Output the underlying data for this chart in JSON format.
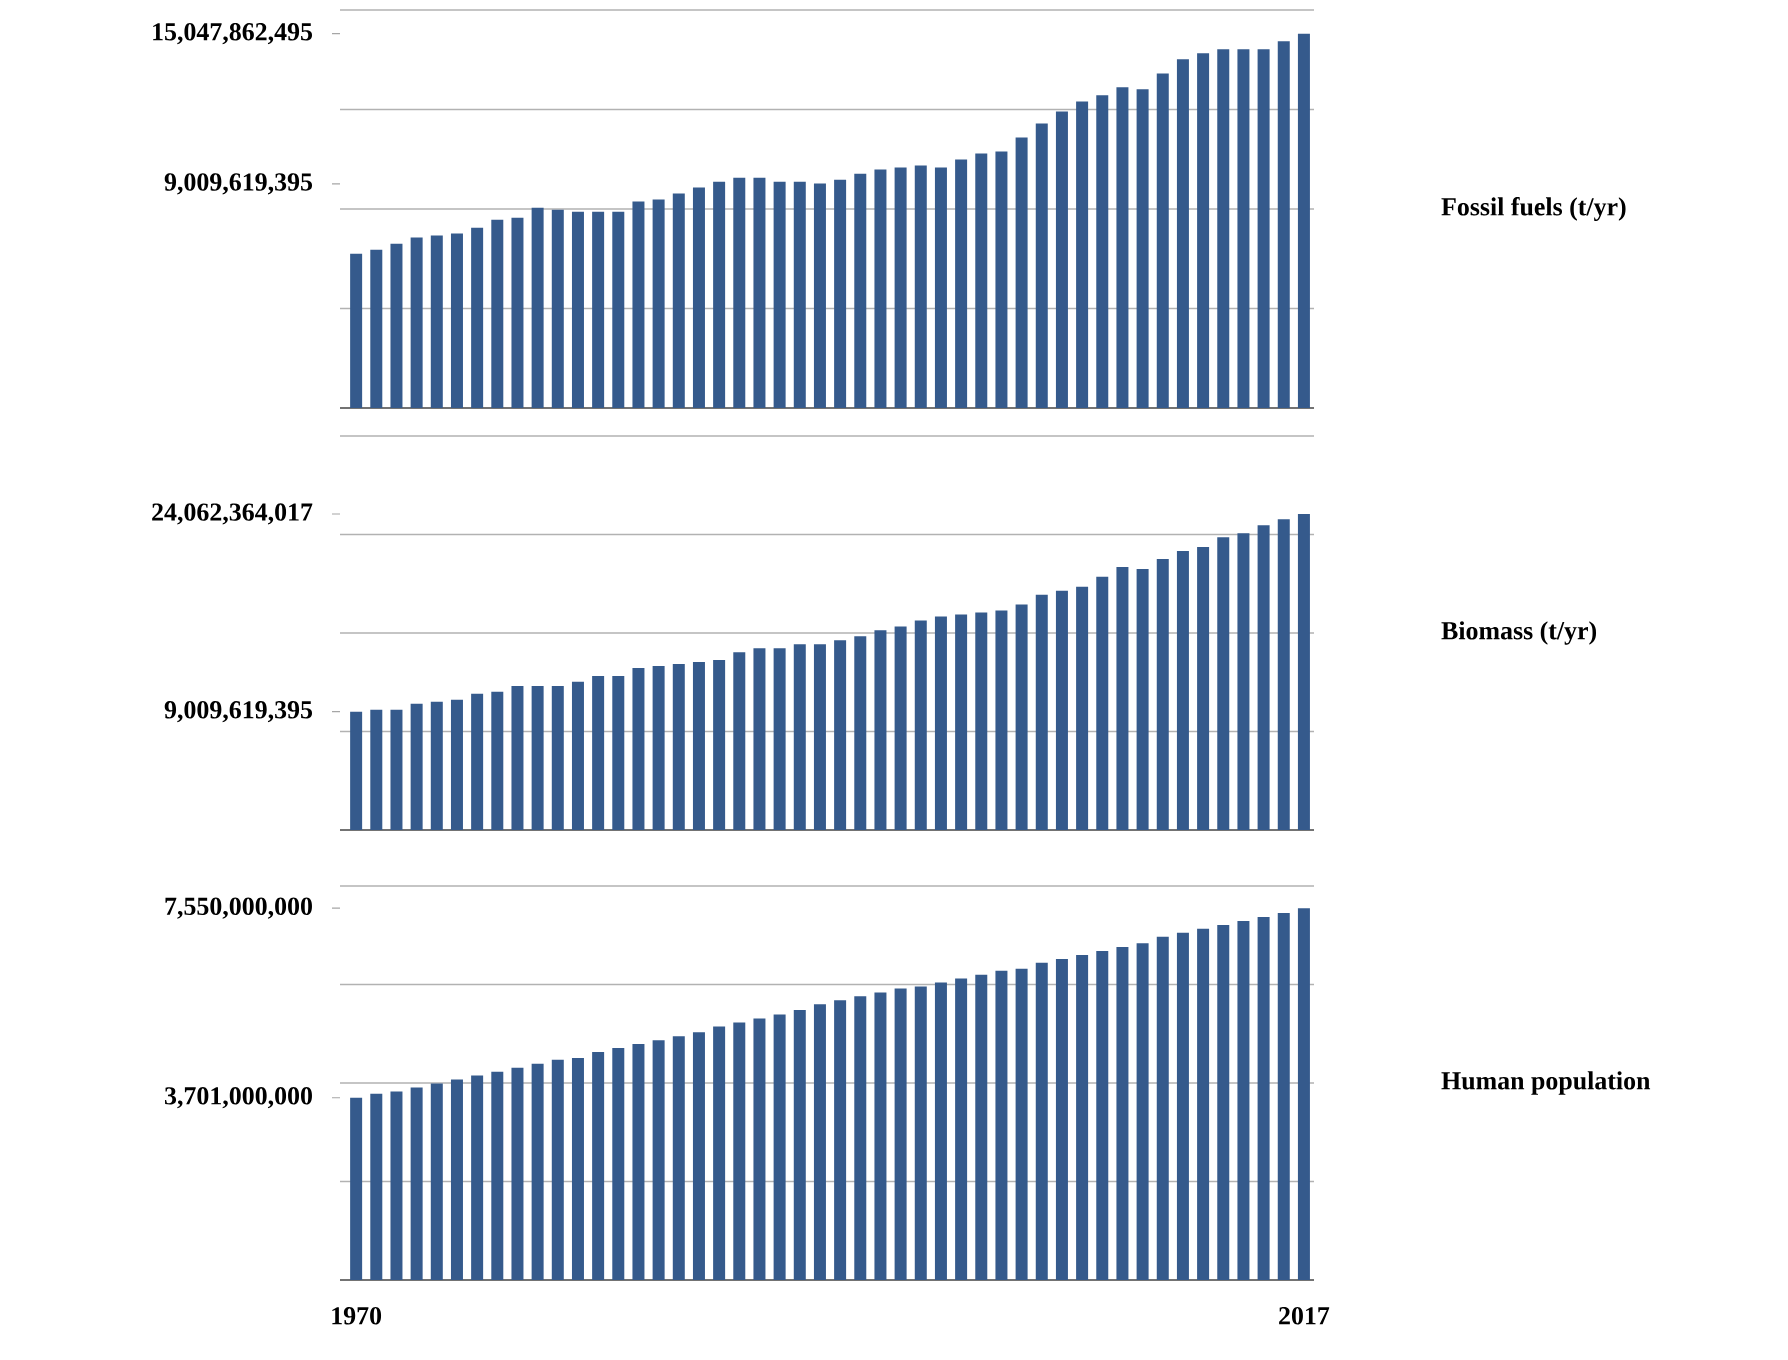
{
  "chart_data": [
    {
      "type": "bar",
      "ylabel": "Fossil fuels (t/yr)",
      "color": "#355a8c",
      "grid": "y",
      "tick_labels": "y",
      "categories": [
        "1970",
        null,
        null,
        null,
        null,
        null,
        null,
        null,
        null,
        null,
        null,
        null,
        null,
        null,
        null,
        null,
        null,
        null,
        null,
        null,
        null,
        null,
        null,
        null,
        null,
        null,
        null,
        null,
        null,
        null,
        null,
        null,
        null,
        null,
        null,
        null,
        null,
        null,
        null,
        null,
        null,
        null,
        null,
        null,
        null,
        null,
        null,
        "2017"
      ],
      "values": [
        6200000000.0,
        6360000000.0,
        6600000000.0,
        6850000000.0,
        6930000000.0,
        7010000000.0,
        7250000000.0,
        7570000000.0,
        7650000000.0,
        8050000000.0,
        7970000000.0,
        7890000000.0,
        7890000000.0,
        7890000000.0,
        8300000000.0,
        8380000000.0,
        8620000000.0,
        8860000000.0,
        9100000000.0,
        9260000000.0,
        9260000000.0,
        9100000000.0,
        9100000000.0,
        9020000000.0,
        9180000000.0,
        9420000000.0,
        9590000000.0,
        9670000000.0,
        9750000000.0,
        9670000000.0,
        9990000000.0,
        10230000000.0,
        10310000000.0,
        10870000000.0,
        11440000000.0,
        11920000000.0,
        12320000000.0,
        12570000000.0,
        12890000000.0,
        12810000000.0,
        13450000000.0,
        14020000000.0,
        14260000000.0,
        14420000000.0,
        14420000000.0,
        14420000000.0,
        14740000000.0,
        15047862495
      ],
      "ylim": [
        0,
        16000000000
      ],
      "yticks": [
        {
          "value": 9009619395,
          "label": "9,009,619,395"
        },
        {
          "value": 15047862495,
          "label": "15,047,862,495"
        },
        {
          "value": 4000000000,
          "label": null
        },
        {
          "value": 8000000000,
          "label": null
        },
        {
          "value": 12000000000,
          "label": null
        },
        {
          "value": 16000000000,
          "label": null
        }
      ]
    },
    {
      "type": "bar",
      "ylabel": "Biomass (t/yr)",
      "color": "#355a8c",
      "grid": "y",
      "tick_labels": "y",
      "categories": [
        "1970",
        null,
        null,
        null,
        null,
        null,
        null,
        null,
        null,
        null,
        null,
        null,
        null,
        null,
        null,
        null,
        null,
        null,
        null,
        null,
        null,
        null,
        null,
        null,
        null,
        null,
        null,
        null,
        null,
        null,
        null,
        null,
        null,
        null,
        null,
        null,
        null,
        null,
        null,
        null,
        null,
        null,
        null,
        null,
        null,
        null,
        null,
        "2017"
      ],
      "values": [
        9009619395,
        9160000000.0,
        9160000000.0,
        9610000000.0,
        9770000000.0,
        9920000000.0,
        10370000000.0,
        10520000000.0,
        10970000000.0,
        10970000000.0,
        10970000000.0,
        11280000000.0,
        11730000000.0,
        11730000000.0,
        12330000000.0,
        12480000000.0,
        12630000000.0,
        12790000000.0,
        12940000000.0,
        13540000000.0,
        13840000000.0,
        13840000000.0,
        14140000000.0,
        14140000000.0,
        14450000000.0,
        14750000000.0,
        15200000000.0,
        15500000000.0,
        15960000000.0,
        16260000000.0,
        16410000000.0,
        16560000000.0,
        16710000000.0,
        17170000000.0,
        17920000000.0,
        18220000000.0,
        18520000000.0,
        19280000000.0,
        20030000000.0,
        19880000000.0,
        20640000000.0,
        21240000000.0,
        21540000000.0,
        22300000000.0,
        22600000000.0,
        23210000000.0,
        23660000000.0,
        24062364017
      ],
      "ylim": [
        0,
        30000000000
      ],
      "yticks": [
        {
          "value": 9009619395,
          "label": "9,009,619,395"
        },
        {
          "value": 24062364017,
          "label": "24,062,364,017"
        },
        {
          "value": 7500000000,
          "label": null
        },
        {
          "value": 15000000000,
          "label": null
        },
        {
          "value": 22500000000,
          "label": null
        },
        {
          "value": 30000000000,
          "label": null
        }
      ]
    },
    {
      "type": "bar",
      "ylabel": "Human population",
      "color": "#355a8c",
      "grid": "y",
      "categories": [
        "1970",
        null,
        null,
        null,
        null,
        null,
        null,
        null,
        null,
        null,
        null,
        null,
        null,
        null,
        null,
        null,
        null,
        null,
        null,
        null,
        null,
        null,
        null,
        null,
        null,
        null,
        null,
        null,
        null,
        null,
        null,
        null,
        null,
        null,
        null,
        null,
        null,
        null,
        null,
        null,
        null,
        null,
        null,
        null,
        null,
        null,
        null,
        "2017"
      ],
      "values": [
        3701000000,
        3780000000.0,
        3830000000.0,
        3910000000.0,
        3990000000.0,
        4070000000.0,
        4150000000.0,
        4230000000.0,
        4310000000.0,
        4390000000.0,
        4470000000.0,
        4510000000.0,
        4630000000.0,
        4710000000.0,
        4790000000.0,
        4870000000.0,
        4950000000.0,
        5030000000.0,
        5150000000.0,
        5230000000.0,
        5310000000.0,
        5390000000.0,
        5480000000.0,
        5600000000.0,
        5680000000.0,
        5760000000.0,
        5840000000.0,
        5920000000.0,
        5960000000.0,
        6040000000.0,
        6120000000.0,
        6200000000.0,
        6280000000.0,
        6320000000.0,
        6440000000.0,
        6520000000.0,
        6600000000.0,
        6680000000.0,
        6760000000.0,
        6840000000.0,
        6970000000.0,
        7050000000.0,
        7130000000.0,
        7210000000.0,
        7290000000.0,
        7370000000.0,
        7450000000.0,
        7550000000
      ],
      "ylim": [
        0,
        8000000000
      ],
      "yticks": [
        {
          "value": 3701000000,
          "label": "3,701,000,000"
        },
        {
          "value": 7550000000,
          "label": "7,550,000,000"
        },
        {
          "value": 2000000000,
          "label": null
        },
        {
          "value": 4000000000,
          "label": null
        },
        {
          "value": 6000000000,
          "label": null
        },
        {
          "value": 8000000000,
          "label": null
        }
      ]
    }
  ]
}
